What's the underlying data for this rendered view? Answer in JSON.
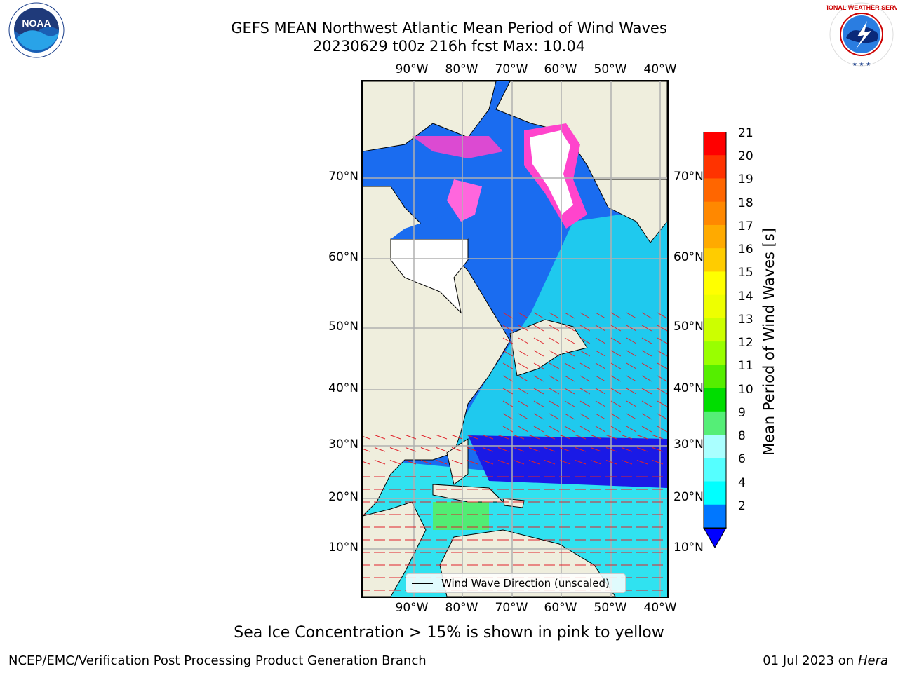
{
  "header": {
    "title_line1": "GEFS MEAN Northwest Atlantic Mean Period of Wind Waves",
    "title_line2": "20230629 t00z 216h fcst   Max: 10.04"
  },
  "logos": {
    "noaa_text": "NOAA",
    "noaa_ring_text": "NATIONAL OCEANIC AND ATMOSPHERIC ADMINISTRATION · U.S. DEPARTMENT OF COMMERCE",
    "nws_ring_text": "NATIONAL WEATHER SERVICE"
  },
  "map": {
    "lon_labels": [
      "90°W",
      "80°W",
      "70°W",
      "60°W",
      "50°W",
      "40°W"
    ],
    "lat_labels": [
      "70°N",
      "60°N",
      "50°N",
      "40°N",
      "30°N",
      "20°N",
      "10°N"
    ],
    "legend_text": "Wind Wave Direction (unscaled)",
    "land_color": "#efeedd",
    "ice_note_colors": [
      "#ff33cc",
      "#ff99ff",
      "#ffcc66",
      "#ffffff"
    ]
  },
  "colorbar": {
    "label": "Mean Period of Wind Waves [s]",
    "ticks": [
      "21",
      "20",
      "19",
      "18",
      "17",
      "16",
      "15",
      "14",
      "13",
      "12",
      "11",
      "10",
      "9",
      "8",
      "6",
      "4",
      "2"
    ],
    "colors": [
      "#ff0000",
      "#ff3300",
      "#ff6600",
      "#ff8800",
      "#ffaa00",
      "#ffcc00",
      "#ffff00",
      "#eeff00",
      "#ccff00",
      "#99ff00",
      "#55ee00",
      "#00dd00",
      "#55ee77",
      "#aaffff",
      "#55ffff",
      "#00ffff",
      "#0077ff"
    ],
    "extend_color": "#0000ff"
  },
  "caption": "Sea Ice Concentration > 15% is shown in pink to yellow",
  "footer": {
    "left": "NCEP/EMC/Verification Post Processing Product Generation Branch",
    "right_date": "01 Jul 2023 on ",
    "right_host": "Hera"
  }
}
